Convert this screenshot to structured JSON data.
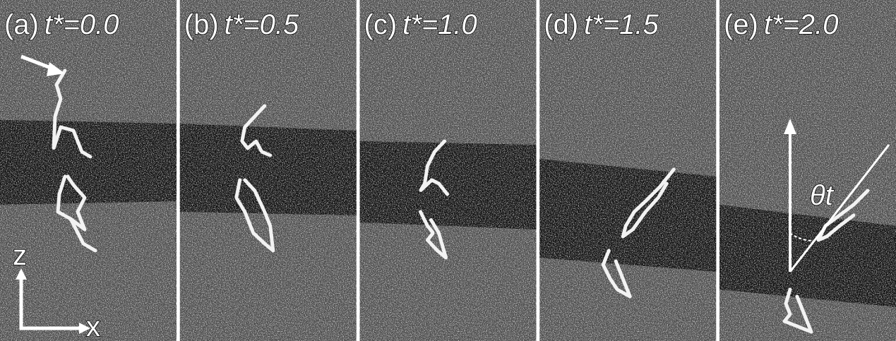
{
  "panels": [
    {
      "tag": "(a)",
      "time_label": "t*=0.0"
    },
    {
      "tag": "(b)",
      "time_label": "t*=0.5"
    },
    {
      "tag": "(c)",
      "time_label": "t*=1.0"
    },
    {
      "tag": "(d)",
      "time_label": "t*=1.5"
    },
    {
      "tag": "(e)",
      "time_label": "t*=2.0"
    }
  ],
  "axes": {
    "vertical": "z",
    "horizontal": "x"
  },
  "angle_label": "θt"
}
